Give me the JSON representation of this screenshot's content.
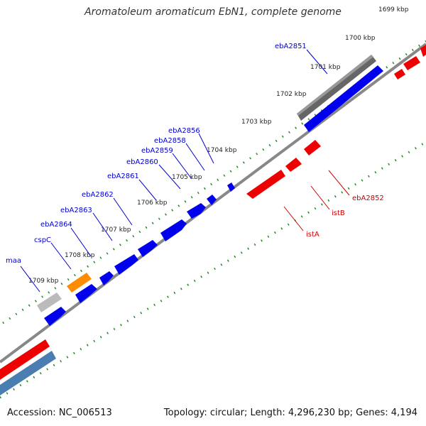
{
  "title": "Aromatoleum aromaticum EbN1, complete genome",
  "footer": {
    "accession": "Accession: NC_006513",
    "summary": "Topology: circular; Length: 4,296,230 bp; Genes: 4,194"
  },
  "colors": {
    "background": "#ffffff",
    "forward_gene": "#0000ee",
    "reverse_gene": "#ee0000",
    "highlight_gene": "#ff8c00",
    "pseudo_gene": "#bbbbbb",
    "rna_track": "#666666",
    "backbone": "#888888",
    "tick": "#228b22",
    "label_forward": "#0000cc",
    "label_reverse": "#cc0000"
  },
  "kbp_ticks": [
    "1699 kbp",
    "1700 kbp",
    "1701 kbp",
    "1702 kbp",
    "1703 kbp",
    "1704 kbp",
    "1705 kbp",
    "1706 kbp",
    "1707 kbp",
    "1708 kbp",
    "1709 kbp"
  ],
  "forward_genes": [
    "maa",
    "cspC",
    "ebA2864",
    "ebA2863",
    "ebA2862",
    "ebA2861",
    "ebA2860",
    "ebA2859",
    "ebA2858",
    "ebA2856",
    "ebA2851"
  ],
  "reverse_genes": [
    "istA",
    "istB",
    "ebA2852"
  ]
}
